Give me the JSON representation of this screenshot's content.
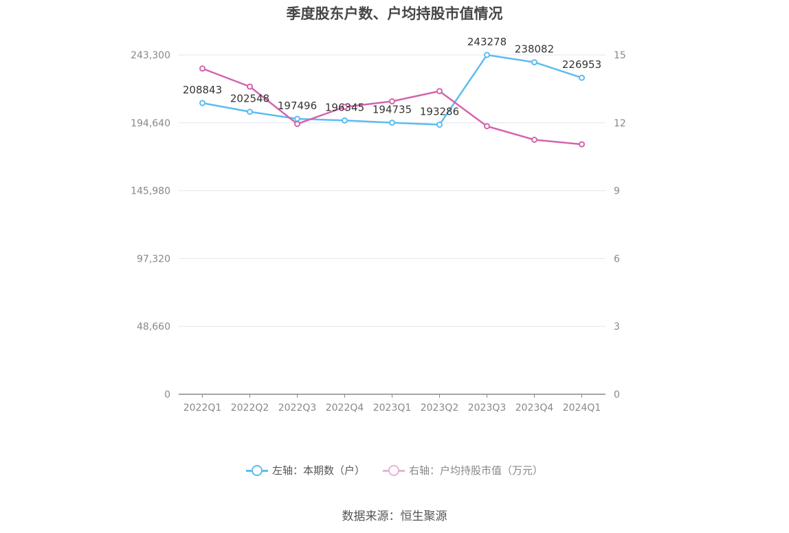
{
  "page": {
    "title": "季度股东户数、户均持股市值情况",
    "source": "数据来源：恒生聚源"
  },
  "legend": {
    "left_label": "左轴：本期数（户）",
    "right_label": "右轴：户均持股市值（万元）"
  },
  "colors": {
    "left_series": "#5bbcf0",
    "right_series": "#d563ad",
    "right_legend_faded": "#e8b1d6",
    "grid": "#e3e6ef",
    "axis": "#888888",
    "tick_text": "#888888",
    "label_text": "#333333"
  },
  "chart_data": {
    "type": "line",
    "title": "季度股东户数、户均持股市值情况",
    "categories": [
      "2022Q1",
      "2022Q2",
      "2022Q3",
      "2022Q4",
      "2023Q1",
      "2023Q2",
      "2023Q3",
      "2023Q4",
      "2024Q1"
    ],
    "left_axis": {
      "ticks": [
        "0",
        "48,660",
        "97,320",
        "145,980",
        "194,640",
        "243,300"
      ],
      "ylim": [
        0,
        243300
      ]
    },
    "right_axis": {
      "ticks": [
        "0",
        "3",
        "6",
        "9",
        "12",
        "15"
      ],
      "ylim": [
        0,
        15
      ]
    },
    "series": [
      {
        "name": "左轴：本期数（户）",
        "axis": "left",
        "values": [
          208843,
          202548,
          197496,
          196345,
          194735,
          193286,
          243278,
          238082,
          226953
        ],
        "labels": [
          "208843",
          "202548",
          "197496",
          "196345",
          "194735",
          "193286",
          "243278",
          "238082",
          "226953"
        ]
      },
      {
        "name": "右轴：户均持股市值（万元）",
        "axis": "right",
        "values": [
          14.4,
          13.6,
          11.95,
          12.7,
          12.95,
          13.4,
          11.85,
          11.25,
          11.05
        ]
      }
    ],
    "grid": true,
    "legend_position": "bottom"
  }
}
